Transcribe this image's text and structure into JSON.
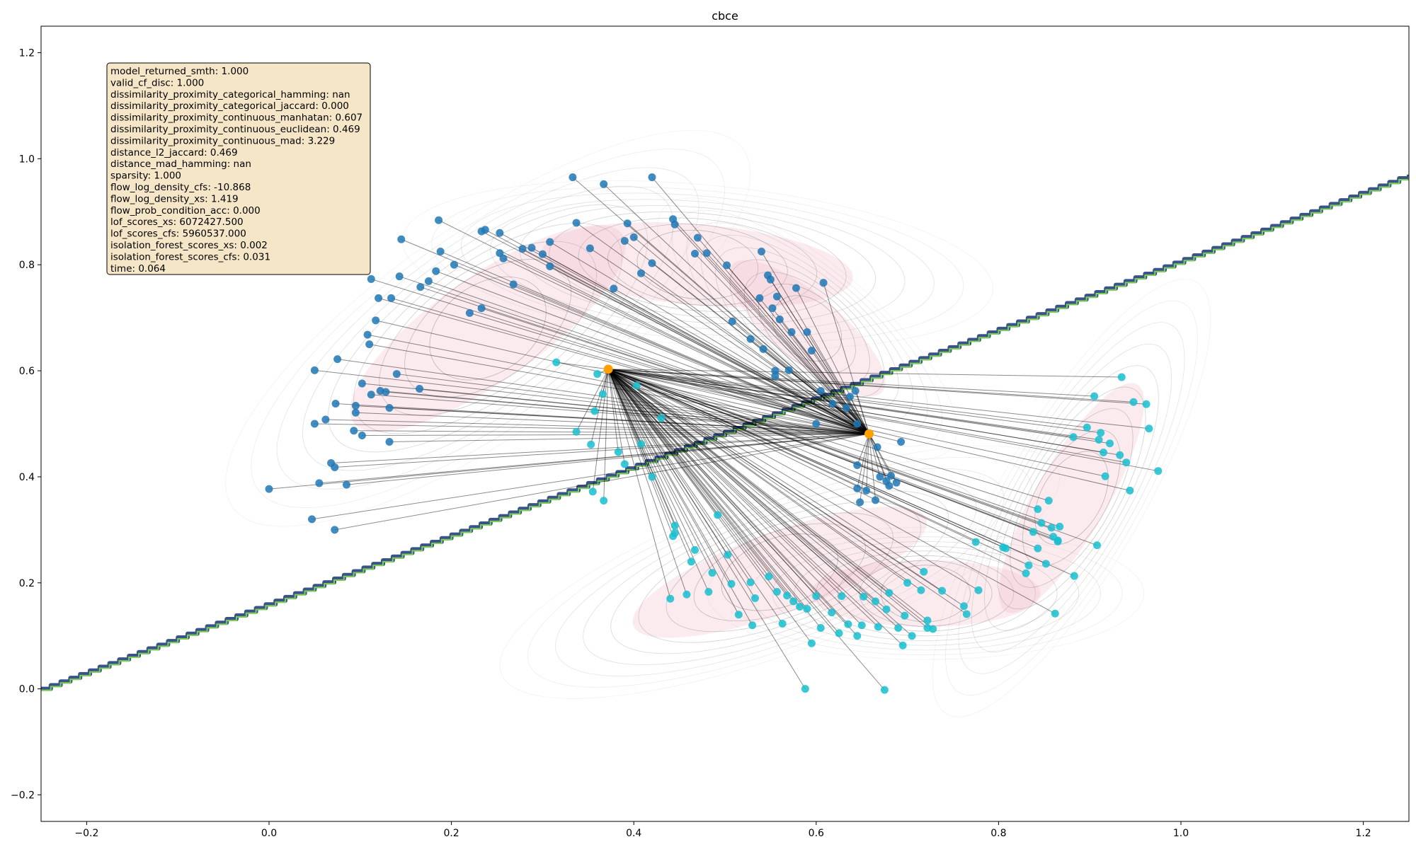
{
  "chart_data": {
    "type": "scatter",
    "title": "cbce",
    "xlabel": "",
    "ylabel": "",
    "xlim": [
      -0.25,
      1.25
    ],
    "ylim": [
      -0.25,
      1.25
    ],
    "x_ticks": [
      -0.2,
      0.0,
      0.2,
      0.4,
      0.6,
      0.8,
      1.0,
      1.2
    ],
    "y_ticks": [
      -0.2,
      0.0,
      0.2,
      0.4,
      0.6,
      0.8,
      1.0,
      1.2
    ],
    "x_tick_labels": [
      "−0.2",
      "0.0",
      "0.2",
      "0.4",
      "0.6",
      "0.8",
      "1.0",
      "1.2"
    ],
    "y_tick_labels": [
      "−0.2",
      "0.0",
      "0.2",
      "0.4",
      "0.6",
      "0.8",
      "1.0",
      "1.2"
    ],
    "grid": false,
    "colors": {
      "class0": "#1f77b4",
      "class1": "#17becf",
      "counterfactual": "#ff9f00",
      "link": "#000000",
      "density_fill": "#f2b8c6",
      "decision_boundary_outer": "#3b528b",
      "decision_boundary_inner": "#7ad151",
      "stats_box": "#f5e6c8"
    },
    "decision_boundary": {
      "points": [
        [
          -0.25,
          0.0
        ],
        [
          1.25,
          0.97
        ]
      ]
    },
    "counterfactuals": [
      {
        "x": 0.372,
        "y": 0.603
      },
      {
        "x": 0.658,
        "y": 0.481
      }
    ],
    "stats": [
      "model_returned_smth: 1.000",
      "valid_cf_disc: 1.000",
      "dissimilarity_proximity_categorical_hamming: nan",
      "dissimilarity_proximity_categorical_jaccard: 0.000",
      "dissimilarity_proximity_continuous_manhatan: 0.607",
      "dissimilarity_proximity_continuous_euclidean: 0.469",
      "dissimilarity_proximity_continuous_mad: 3.229",
      "distance_l2_jaccard: 0.469",
      "distance_mad_hamming: nan",
      "sparsity: 1.000",
      "flow_log_density_cfs: -10.868",
      "flow_log_density_xs: 1.419",
      "flow_prob_condition_acc: 0.000",
      "lof_scores_xs: 6072427.500",
      "lof_scores_cfs: 5960537.000",
      "isolation_forest_scores_xs: 0.002",
      "isolation_forest_scores_cfs: 0.031",
      "time: 0.064"
    ],
    "class0_points": [
      [
        0.0,
        0.377
      ],
      [
        0.047,
        0.32
      ],
      [
        0.072,
        0.3
      ],
      [
        0.055,
        0.388
      ],
      [
        0.068,
        0.426
      ],
      [
        0.072,
        0.418
      ],
      [
        0.085,
        0.385
      ],
      [
        0.05,
        0.5
      ],
      [
        0.062,
        0.508
      ],
      [
        0.073,
        0.538
      ],
      [
        0.05,
        0.601
      ],
      [
        0.075,
        0.622
      ],
      [
        0.095,
        0.534
      ],
      [
        0.095,
        0.521
      ],
      [
        0.093,
        0.487
      ],
      [
        0.102,
        0.478
      ],
      [
        0.102,
        0.576
      ],
      [
        0.112,
        0.555
      ],
      [
        0.122,
        0.562
      ],
      [
        0.128,
        0.56
      ],
      [
        0.132,
        0.53
      ],
      [
        0.132,
        0.466
      ],
      [
        0.14,
        0.594
      ],
      [
        0.165,
        0.566
      ],
      [
        0.108,
        0.668
      ],
      [
        0.11,
        0.65
      ],
      [
        0.117,
        0.695
      ],
      [
        0.12,
        0.737
      ],
      [
        0.112,
        0.773
      ],
      [
        0.134,
        0.737
      ],
      [
        0.143,
        0.778
      ],
      [
        0.145,
        0.848
      ],
      [
        0.166,
        0.758
      ],
      [
        0.175,
        0.769
      ],
      [
        0.183,
        0.788
      ],
      [
        0.186,
        0.884
      ],
      [
        0.188,
        0.825
      ],
      [
        0.203,
        0.8
      ],
      [
        0.22,
        0.709
      ],
      [
        0.233,
        0.718
      ],
      [
        0.233,
        0.863
      ],
      [
        0.237,
        0.866
      ],
      [
        0.253,
        0.822
      ],
      [
        0.253,
        0.86
      ],
      [
        0.257,
        0.812
      ],
      [
        0.268,
        0.763
      ],
      [
        0.278,
        0.83
      ],
      [
        0.288,
        0.832
      ],
      [
        0.3,
        0.82
      ],
      [
        0.308,
        0.797
      ],
      [
        0.308,
        0.843
      ],
      [
        0.333,
        0.965
      ],
      [
        0.337,
        0.879
      ],
      [
        0.352,
        0.831
      ],
      [
        0.367,
        0.952
      ],
      [
        0.378,
        0.755
      ],
      [
        0.39,
        0.845
      ],
      [
        0.393,
        0.878
      ],
      [
        0.4,
        0.852
      ],
      [
        0.408,
        0.784
      ],
      [
        0.42,
        0.965
      ],
      [
        0.42,
        0.803
      ],
      [
        0.443,
        0.886
      ],
      [
        0.445,
        0.876
      ],
      [
        0.467,
        0.821
      ],
      [
        0.47,
        0.851
      ],
      [
        0.48,
        0.822
      ],
      [
        0.502,
        0.799
      ],
      [
        0.508,
        0.693
      ],
      [
        0.528,
        0.66
      ],
      [
        0.538,
        0.737
      ],
      [
        0.54,
        0.825
      ],
      [
        0.542,
        0.641
      ],
      [
        0.547,
        0.78
      ],
      [
        0.55,
        0.772
      ],
      [
        0.552,
        0.718
      ],
      [
        0.555,
        0.6
      ],
      [
        0.557,
        0.74
      ],
      [
        0.555,
        0.59
      ],
      [
        0.56,
        0.697
      ],
      [
        0.57,
        0.601
      ],
      [
        0.573,
        0.673
      ],
      [
        0.578,
        0.756
      ],
      [
        0.59,
        0.673
      ],
      [
        0.595,
        0.638
      ],
      [
        0.6,
        0.5
      ],
      [
        0.605,
        0.562
      ],
      [
        0.608,
        0.766
      ],
      [
        0.618,
        0.538
      ],
      [
        0.633,
        0.53
      ],
      [
        0.637,
        0.551
      ],
      [
        0.643,
        0.562
      ],
      [
        0.645,
        0.5
      ],
      [
        0.645,
        0.422
      ],
      [
        0.648,
        0.352
      ],
      [
        0.645,
        0.378
      ],
      [
        0.655,
        0.374
      ],
      [
        0.665,
        0.356
      ],
      [
        0.667,
        0.456
      ],
      [
        0.67,
        0.4
      ],
      [
        0.677,
        0.392
      ],
      [
        0.68,
        0.383
      ],
      [
        0.682,
        0.402
      ],
      [
        0.688,
        0.389
      ],
      [
        0.693,
        0.466
      ]
    ],
    "class1_points": [
      [
        0.315,
        0.616
      ],
      [
        0.337,
        0.485
      ],
      [
        0.353,
        0.461
      ],
      [
        0.355,
        0.372
      ],
      [
        0.357,
        0.524
      ],
      [
        0.36,
        0.594
      ],
      [
        0.366,
        0.556
      ],
      [
        0.367,
        0.355
      ],
      [
        0.383,
        0.447
      ],
      [
        0.39,
        0.424
      ],
      [
        0.403,
        0.572
      ],
      [
        0.408,
        0.462
      ],
      [
        0.42,
        0.4
      ],
      [
        0.43,
        0.511
      ],
      [
        0.44,
        0.17
      ],
      [
        0.443,
        0.288
      ],
      [
        0.445,
        0.308
      ],
      [
        0.445,
        0.294
      ],
      [
        0.458,
        0.178
      ],
      [
        0.463,
        0.24
      ],
      [
        0.467,
        0.262
      ],
      [
        0.482,
        0.183
      ],
      [
        0.486,
        0.219
      ],
      [
        0.492,
        0.328
      ],
      [
        0.503,
        0.253
      ],
      [
        0.507,
        0.198
      ],
      [
        0.515,
        0.14
      ],
      [
        0.528,
        0.201
      ],
      [
        0.53,
        0.12
      ],
      [
        0.533,
        0.171
      ],
      [
        0.548,
        0.212
      ],
      [
        0.557,
        0.183
      ],
      [
        0.563,
        0.123
      ],
      [
        0.568,
        0.176
      ],
      [
        0.575,
        0.165
      ],
      [
        0.582,
        0.155
      ],
      [
        0.588,
        0.0
      ],
      [
        0.59,
        0.151
      ],
      [
        0.595,
        0.086
      ],
      [
        0.6,
        0.175
      ],
      [
        0.605,
        0.115
      ],
      [
        0.617,
        0.144
      ],
      [
        0.625,
        0.105
      ],
      [
        0.628,
        0.175
      ],
      [
        0.635,
        0.122
      ],
      [
        0.645,
        0.1
      ],
      [
        0.65,
        0.12
      ],
      [
        0.652,
        0.174
      ],
      [
        0.665,
        0.165
      ],
      [
        0.668,
        0.117
      ],
      [
        0.675,
        -0.002
      ],
      [
        0.677,
        0.15
      ],
      [
        0.68,
        0.181
      ],
      [
        0.69,
        0.115
      ],
      [
        0.695,
        0.082
      ],
      [
        0.697,
        0.138
      ],
      [
        0.7,
        0.2
      ],
      [
        0.705,
        0.1
      ],
      [
        0.715,
        0.186
      ],
      [
        0.718,
        0.221
      ],
      [
        0.722,
        0.129
      ],
      [
        0.722,
        0.115
      ],
      [
        0.728,
        0.113
      ],
      [
        0.738,
        0.185
      ],
      [
        0.762,
        0.156
      ],
      [
        0.765,
        0.141
      ],
      [
        0.775,
        0.277
      ],
      [
        0.778,
        0.186
      ],
      [
        0.805,
        0.267
      ],
      [
        0.808,
        0.265
      ],
      [
        0.83,
        0.218
      ],
      [
        0.833,
        0.233
      ],
      [
        0.838,
        0.296
      ],
      [
        0.843,
        0.265
      ],
      [
        0.843,
        0.339
      ],
      [
        0.847,
        0.313
      ],
      [
        0.852,
        0.236
      ],
      [
        0.855,
        0.355
      ],
      [
        0.858,
        0.304
      ],
      [
        0.86,
        0.287
      ],
      [
        0.862,
        0.142
      ],
      [
        0.865,
        0.278
      ],
      [
        0.865,
        0.28
      ],
      [
        0.867,
        0.306
      ],
      [
        0.882,
        0.475
      ],
      [
        0.883,
        0.213
      ],
      [
        0.897,
        0.493
      ],
      [
        0.905,
        0.552
      ],
      [
        0.908,
        0.271
      ],
      [
        0.91,
        0.47
      ],
      [
        0.912,
        0.483
      ],
      [
        0.915,
        0.446
      ],
      [
        0.917,
        0.401
      ],
      [
        0.922,
        0.463
      ],
      [
        0.933,
        0.441
      ],
      [
        0.935,
        0.588
      ],
      [
        0.94,
        0.427
      ],
      [
        0.944,
        0.374
      ],
      [
        0.948,
        0.541
      ],
      [
        0.962,
        0.537
      ],
      [
        0.965,
        0.491
      ],
      [
        0.975,
        0.411
      ]
    ]
  }
}
